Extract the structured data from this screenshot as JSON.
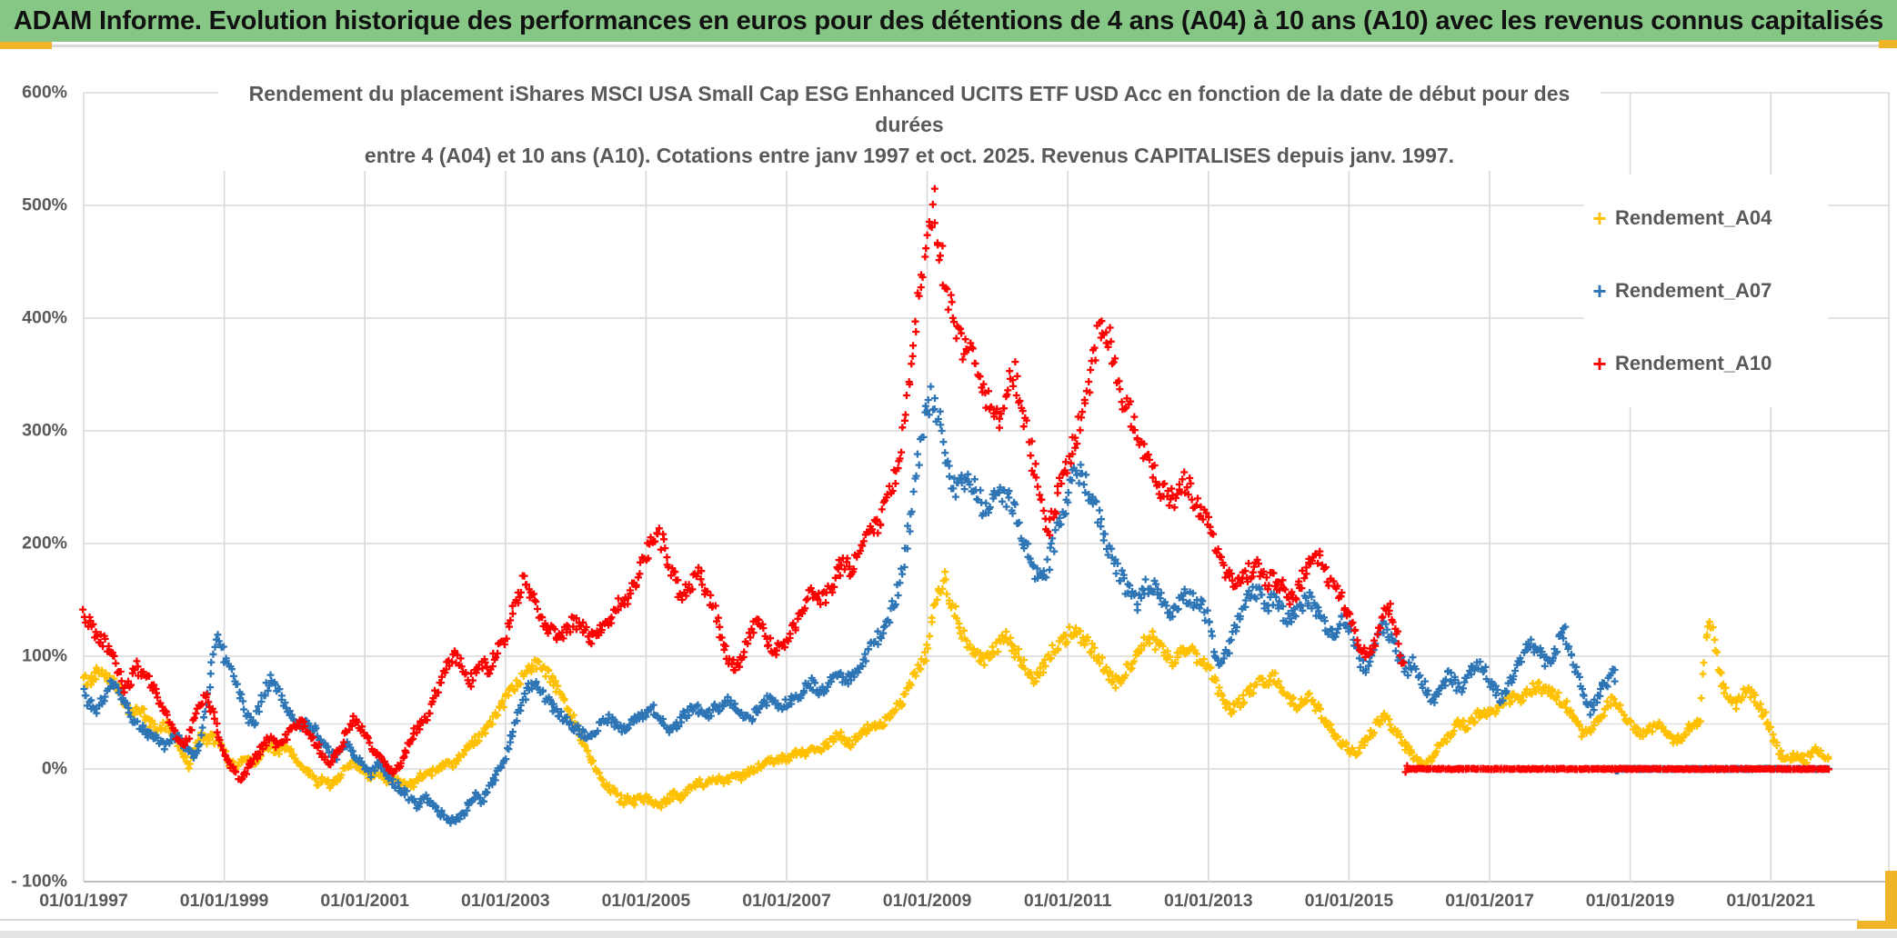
{
  "header": {
    "title": "ADAM Informe. Evolution historique des performances en euros pour des détentions de 4 ans (A04) à 10 ans (A10) avec les revenus connus capitalisés",
    "bg_color": "#86c786",
    "accent_color": "#f0b428"
  },
  "chart": {
    "title_line1": "Rendement du placement iShares MSCI USA Small Cap ESG Enhanced UCITS ETF USD Acc en fonction de la date de début pour des durées",
    "title_line2": "entre 4 (A04) et 10 ans (A10). Cotations entre janv 1997 et oct. 2025. Revenus CAPITALISES depuis janv. 1997.",
    "y_ticks": [
      {
        "label": "600%",
        "value": 600
      },
      {
        "label": "500%",
        "value": 500
      },
      {
        "label": "400%",
        "value": 400
      },
      {
        "label": "300%",
        "value": 300
      },
      {
        "label": "200%",
        "value": 200
      },
      {
        "label": "100%",
        "value": 100
      },
      {
        "label": "0%",
        "value": 0
      },
      {
        "label": "- 100%",
        "value": -100
      }
    ],
    "x_ticks": [
      {
        "label": "01/01/1997",
        "year": 1997
      },
      {
        "label": "01/01/1999",
        "year": 1999
      },
      {
        "label": "01/01/2001",
        "year": 2001
      },
      {
        "label": "01/01/2003",
        "year": 2003
      },
      {
        "label": "01/01/2005",
        "year": 2005
      },
      {
        "label": "01/01/2007",
        "year": 2007
      },
      {
        "label": "01/01/2009",
        "year": 2009
      },
      {
        "label": "01/01/2011",
        "year": 2011
      },
      {
        "label": "01/01/2013",
        "year": 2013
      },
      {
        "label": "01/01/2015",
        "year": 2015
      },
      {
        "label": "01/01/2017",
        "year": 2017
      },
      {
        "label": "01/01/2019",
        "year": 2019
      },
      {
        "label": "01/01/2021",
        "year": 2021
      }
    ],
    "legend": [
      {
        "label": "Rendement_A04",
        "color": "#FFC000"
      },
      {
        "label": "Rendement_A07",
        "color": "#2E75B6"
      },
      {
        "label": "Rendement_A10",
        "color": "#FF0000"
      }
    ],
    "grid_color": "#d9d9d9",
    "axis_line_color": "#bfbfbf",
    "ref_line_value": 40
  },
  "chart_data": {
    "type": "scatter",
    "title": "Rendement du placement iShares MSCI USA Small Cap ESG Enhanced UCITS ETF USD Acc en fonction de la date de début pour des durées entre 4 (A04) et 10 ans (A10). Cotations entre janv 1997 et oct. 2025. Revenus CAPITALISES depuis janv. 1997.",
    "marker": "plus",
    "x_unit": "start date, monthly from 1997-01 to 2021-11",
    "x_range_years": [
      1997.0,
      2021.92
    ],
    "ylim": [
      -100,
      600
    ],
    "y_unit": "percent",
    "legend_position": "right-inside",
    "grid": "on",
    "note_values": "values in % sampled monthly; 0 values are the flat red/blue baseline shown after the last complete holding period (A10 after oct. 2015, A07 after oct. 2018)",
    "series": [
      {
        "name": "Rendement_A04",
        "color": "#FFC000",
        "values_by_year": [
          [
            80,
            76,
            85,
            88,
            84,
            78,
            72,
            60,
            48,
            55,
            50,
            42
          ],
          [
            38,
            35,
            40,
            34,
            25,
            12,
            2,
            18,
            30,
            25,
            28,
            22
          ],
          [
            15,
            5,
            2,
            8,
            10,
            6,
            12,
            18,
            22,
            14,
            20,
            16
          ],
          [
            10,
            2,
            -2,
            -6,
            -12,
            -8,
            -14,
            -10,
            -4,
            1,
            6,
            2
          ],
          [
            -4,
            -8,
            -2,
            -6,
            -12,
            -8,
            -14,
            -10,
            -15,
            -8,
            -4,
            -6
          ],
          [
            -2,
            2,
            6,
            3,
            8,
            14,
            20,
            26,
            32,
            38,
            45,
            52
          ],
          [
            60,
            68,
            75,
            82,
            90,
            95,
            92,
            85,
            78,
            70,
            60,
            50
          ],
          [
            40,
            28,
            15,
            5,
            -5,
            -12,
            -18,
            -24,
            -28,
            -25,
            -30,
            -27
          ],
          [
            -25,
            -28,
            -32,
            -30,
            -26,
            -22,
            -25,
            -20,
            -16,
            -12,
            -15,
            -10
          ],
          [
            -8,
            -12,
            -10,
            -6,
            -8,
            -4,
            -2,
            1,
            4,
            8,
            6,
            10
          ],
          [
            8,
            12,
            15,
            12,
            16,
            20,
            18,
            22,
            26,
            30,
            26,
            22
          ],
          [
            28,
            32,
            36,
            40,
            38,
            44,
            50,
            56,
            62,
            75,
            85,
            92
          ],
          [
            105,
            135,
            160,
            168,
            152,
            135,
            122,
            112,
            104,
            98,
            95,
            102
          ],
          [
            110,
            118,
            112,
            104,
            96,
            88,
            80,
            84,
            92,
            100,
            108,
            112
          ],
          [
            118,
            124,
            120,
            114,
            108,
            100,
            92,
            82,
            76,
            80,
            88,
            96
          ],
          [
            104,
            112,
            118,
            112,
            106,
            100,
            96,
            102,
            108,
            104,
            98,
            94
          ],
          [
            90,
            80,
            66,
            58,
            52,
            56,
            62,
            68,
            74,
            80,
            78,
            82
          ],
          [
            76,
            70,
            62,
            56,
            60,
            64,
            58,
            50,
            42,
            35,
            28,
            22
          ],
          [
            18,
            14,
            20,
            26,
            32,
            42,
            48,
            40,
            32,
            26,
            18,
            10
          ],
          [
            6,
            2,
            8,
            16,
            24,
            30,
            36,
            42,
            38,
            44,
            48,
            52
          ],
          [
            48,
            52,
            56,
            60,
            64,
            60,
            66,
            70,
            74,
            68,
            72,
            66
          ],
          [
            62,
            58,
            48,
            38,
            30,
            34,
            40,
            48,
            56,
            64,
            58,
            48
          ],
          [
            40,
            34,
            30,
            34,
            38,
            42,
            35,
            28,
            24,
            30,
            36,
            40
          ],
          [
            44,
            120,
            128,
            90,
            70,
            62,
            58,
            64,
            70,
            66,
            55,
            48
          ],
          [
            35,
            20,
            10,
            8,
            12,
            10,
            7,
            14,
            18,
            12,
            12
          ]
        ]
      },
      {
        "name": "Rendement_A07",
        "color": "#2E75B6",
        "values_by_year": [
          [
            66,
            58,
            50,
            60,
            70,
            75,
            68,
            58,
            48,
            40,
            35,
            32
          ],
          [
            30,
            24,
            20,
            26,
            30,
            22,
            15,
            10,
            25,
            60,
            95,
            118
          ],
          [
            100,
            88,
            76,
            65,
            45,
            38,
            55,
            70,
            80,
            72,
            60,
            50
          ],
          [
            42,
            36,
            44,
            38,
            30,
            22,
            15,
            10,
            18,
            25,
            15,
            8
          ],
          [
            2,
            -5,
            5,
            1,
            -8,
            -12,
            -18,
            -22,
            -28,
            -32,
            -25,
            -30
          ],
          [
            -35,
            -40,
            -44,
            -45,
            -42,
            -38,
            -30,
            -22,
            -28,
            -20,
            -10,
            1
          ],
          [
            12,
            28,
            45,
            60,
            72,
            78,
            70,
            62,
            56,
            50,
            44,
            40
          ],
          [
            36,
            32,
            28,
            33,
            38,
            42,
            45,
            40,
            35,
            38,
            42,
            46
          ],
          [
            50,
            54,
            48,
            42,
            36,
            38,
            44,
            50,
            55,
            52,
            46,
            50
          ],
          [
            54,
            58,
            62,
            56,
            50,
            44,
            46,
            52,
            58,
            62,
            58,
            54
          ],
          [
            58,
            62,
            66,
            72,
            76,
            72,
            68,
            74,
            80,
            85,
            78,
            82
          ],
          [
            88,
            95,
            104,
            112,
            120,
            130,
            142,
            158,
            180,
            215,
            255,
            295
          ],
          [
            320,
            332,
            310,
            280,
            260,
            245,
            252,
            262,
            250,
            238,
            230,
            242
          ],
          [
            240,
            245,
            238,
            225,
            210,
            195,
            178,
            168,
            172,
            188,
            208,
            228
          ],
          [
            242,
            256,
            265,
            255,
            240,
            225,
            210,
            195,
            180,
            170,
            162,
            155
          ],
          [
            148,
            158,
            165,
            158,
            150,
            142,
            138,
            146,
            154,
            150,
            144,
            148
          ],
          [
            130,
            105,
            90,
            100,
            118,
            132,
            145,
            155,
            160,
            152,
            145,
            150
          ],
          [
            145,
            138,
            132,
            138,
            146,
            152,
            144,
            134,
            125,
            118,
            124,
            132
          ],
          [
            126,
            115,
            95,
            88,
            102,
            118,
            130,
            120,
            105,
            95,
            88,
            95
          ],
          [
            85,
            72,
            60,
            66,
            76,
            84,
            78,
            70,
            78,
            88,
            95,
            90
          ],
          [
            78,
            68,
            62,
            72,
            84,
            95,
            105,
            112,
            108,
            98,
            92,
            100
          ],
          [
            115,
            120,
            100,
            82,
            62,
            52,
            58,
            68,
            78,
            83,
            0,
            0
          ],
          [
            0,
            0,
            0,
            0,
            0,
            0,
            0,
            0,
            0,
            0,
            0,
            0
          ],
          [
            0,
            0,
            0,
            0,
            0,
            0,
            0,
            0,
            0,
            0,
            0,
            0
          ],
          [
            0,
            0,
            0,
            0,
            0,
            0,
            0,
            0,
            0,
            0,
            0
          ]
        ]
      },
      {
        "name": "Rendement_A10",
        "color": "#FF0000",
        "values_by_year": [
          [
            138,
            130,
            122,
            115,
            108,
            100,
            85,
            72,
            78,
            90,
            85,
            78
          ],
          [
            70,
            62,
            50,
            38,
            28,
            20,
            30,
            45,
            60,
            68,
            50,
            30
          ],
          [
            15,
            2,
            -5,
            -8,
            1,
            8,
            15,
            22,
            28,
            20,
            25,
            32
          ],
          [
            38,
            42,
            36,
            28,
            20,
            10,
            5,
            12,
            22,
            35,
            45,
            40
          ],
          [
            32,
            22,
            12,
            8,
            2,
            -2,
            5,
            15,
            28,
            38,
            42,
            50
          ],
          [
            65,
            80,
            92,
            100,
            96,
            88,
            78,
            85,
            95,
            88,
            98,
            108
          ],
          [
            118,
            135,
            152,
            165,
            158,
            148,
            138,
            128,
            120,
            115,
            122,
            128
          ],
          [
            132,
            126,
            120,
            115,
            120,
            128,
            135,
            142,
            148,
            155,
            165,
            178
          ],
          [
            190,
            200,
            208,
            198,
            182,
            165,
            152,
            158,
            168,
            175,
            160,
            148
          ],
          [
            135,
            118,
            100,
            90,
            95,
            108,
            120,
            132,
            125,
            112,
            102,
            108
          ],
          [
            115,
            125,
            135,
            145,
            152,
            158,
            150,
            155,
            165,
            178,
            185,
            178
          ],
          [
            188,
            196,
            205,
            212,
            220,
            235,
            250,
            270,
            300,
            340,
            390,
            440
          ],
          [
            480,
            505,
            470,
            430,
            405,
            385,
            370,
            378,
            368,
            345,
            330,
            318
          ],
          [
            310,
            325,
            340,
            348,
            330,
            305,
            275,
            245,
            222,
            215,
            235,
            258
          ],
          [
            272,
            288,
            305,
            330,
            355,
            378,
            395,
            388,
            362,
            338,
            322,
            310
          ],
          [
            295,
            280,
            268,
            258,
            250,
            242,
            238,
            248,
            256,
            246,
            236,
            228
          ],
          [
            220,
            205,
            188,
            175,
            168,
            162,
            168,
            175,
            180,
            172,
            165,
            170
          ],
          [
            165,
            158,
            152,
            158,
            168,
            182,
            195,
            185,
            172,
            162,
            155,
            148
          ],
          [
            138,
            125,
            108,
            98,
            105,
            122,
            138,
            145,
            128,
            95,
            0,
            0
          ],
          [
            0,
            0,
            0,
            0,
            0,
            0,
            0,
            0,
            0,
            0,
            0,
            0
          ],
          [
            0,
            0,
            0,
            0,
            0,
            0,
            0,
            0,
            0,
            0,
            0,
            0
          ],
          [
            0,
            0,
            0,
            0,
            0,
            0,
            0,
            0,
            0,
            0,
            0,
            0
          ],
          [
            0,
            0,
            0,
            0,
            0,
            0,
            0,
            0,
            0,
            0,
            0,
            0
          ],
          [
            0,
            0,
            0,
            0,
            0,
            0,
            0,
            0,
            0,
            0,
            0,
            0
          ],
          [
            0,
            0,
            0,
            0,
            0,
            0,
            0,
            0,
            0,
            0,
            0
          ]
        ]
      }
    ]
  }
}
